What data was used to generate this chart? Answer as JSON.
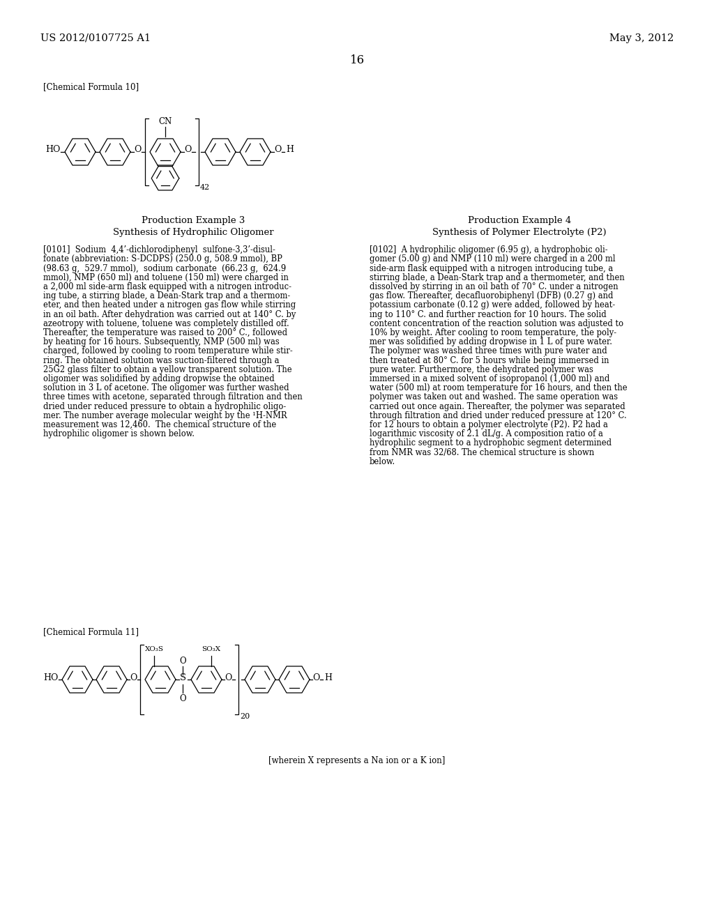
{
  "bg_color": "#ffffff",
  "header_left": "US 2012/0107725 A1",
  "header_right": "May 3, 2012",
  "page_number": "16",
  "chem_formula_10_label": "[Chemical Formula 10]",
  "chem_formula_11_label": "[Chemical Formula 11]",
  "footnote": "[wherein X represents a Na ion or a K ion]",
  "col1_title": "Production Example 3",
  "col1_subtitle": "Synthesis of Hydrophilic Oligomer",
  "col1_lines": [
    "[0101]  Sodium  4,4’-dichlorodiphenyl  sulfone-3,3’-disul-",
    "fonate (abbreviation: S-DCDPS) (250.0 g, 508.9 mmol), BP",
    "(98.63 g,  529.7 mmol),  sodium carbonate  (66.23 g,  624.9",
    "mmol), NMP (650 ml) and toluene (150 ml) were charged in",
    "a 2,000 ml side-arm flask equipped with a nitrogen introduc-",
    "ing tube, a stirring blade, a Dean-Stark trap and a thermom-",
    "eter, and then heated under a nitrogen gas flow while stirring",
    "in an oil bath. After dehydration was carried out at 140° C. by",
    "azeotropy with toluene, toluene was completely distilled off.",
    "Thereafter, the temperature was raised to 200° C., followed",
    "by heating for 16 hours. Subsequently, NMP (500 ml) was",
    "charged, followed by cooling to room temperature while stir-",
    "ring. The obtained solution was suction-filtered through a",
    "25G2 glass filter to obtain a yellow transparent solution. The",
    "oligomer was solidified by adding dropwise the obtained",
    "solution in 3 L of acetone. The oligomer was further washed",
    "three times with acetone, separated through filtration and then",
    "dried under reduced pressure to obtain a hydrophilic oligo-",
    "mer. The number average molecular weight by the ¹H-NMR",
    "measurement was 12,460.  The chemical structure of the",
    "hydrophilic oligomer is shown below."
  ],
  "col2_title": "Production Example 4",
  "col2_subtitle": "Synthesis of Polymer Electrolyte (P2)",
  "col2_lines": [
    "[0102]  A hydrophilic oligomer (6.95 g), a hydrophobic oli-",
    "gomer (5.00 g) and NMP (110 ml) were charged in a 200 ml",
    "side-arm flask equipped with a nitrogen introducing tube, a",
    "stirring blade, a Dean-Stark trap and a thermometer, and then",
    "dissolved by stirring in an oil bath of 70° C. under a nitrogen",
    "gas flow. Thereafter, decafluorobiphenyl (DFB) (0.27 g) and",
    "potassium carbonate (0.12 g) were added, followed by heat-",
    "ing to 110° C. and further reaction for 10 hours. The solid",
    "content concentration of the reaction solution was adjusted to",
    "10% by weight. After cooling to room temperature, the poly-",
    "mer was solidified by adding dropwise in 1 L of pure water.",
    "The polymer was washed three times with pure water and",
    "then treated at 80° C. for 5 hours while being immersed in",
    "pure water. Furthermore, the dehydrated polymer was",
    "immersed in a mixed solvent of isopropanol (1,000 ml) and",
    "water (500 ml) at room temperature for 16 hours, and then the",
    "polymer was taken out and washed. The same operation was",
    "carried out once again. Thereafter, the polymer was separated",
    "through filtration and dried under reduced pressure at 120° C.",
    "for 12 hours to obtain a polymer electrolyte (P2). P2 had a",
    "logarithmic viscosity of 2.1 dL/g. A composition ratio of a",
    "hydrophilic segment to a hydrophobic segment determined",
    "from NMR was 32/68. The chemical structure is shown",
    "below."
  ]
}
